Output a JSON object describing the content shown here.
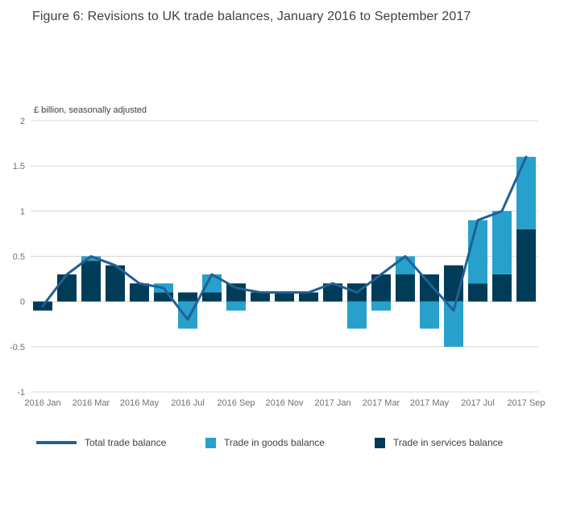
{
  "chart_data": {
    "type": "bar",
    "subtype": "stacked-bar-with-line",
    "title": "Figure 6: Revisions to UK trade balances, January 2016 to September 2017",
    "unit_label": "£ billion, seasonally adjusted",
    "categories": [
      "2016 Jan",
      "2016 Feb",
      "2016 Mar",
      "2016 Apr",
      "2016 May",
      "2016 Jun",
      "2016 Jul",
      "2016 Aug",
      "2016 Sep",
      "2016 Oct",
      "2016 Nov",
      "2016 Dec",
      "2017 Jan",
      "2017 Feb",
      "2017 Mar",
      "2017 Apr",
      "2017 May",
      "2017 Jun",
      "2017 Jul",
      "2017 Aug",
      "2017 Sep"
    ],
    "x_tick_every": 2,
    "ylim": [
      -1,
      2
    ],
    "yticks": [
      2,
      1.5,
      1,
      0.5,
      0,
      -0.5,
      -1
    ],
    "grid": true,
    "legend_position": "bottom",
    "colors": {
      "grid": "#d8d8d8",
      "tick_text": "#707070"
    },
    "series": [
      {
        "name": "Total trade balance",
        "type": "line",
        "color": "#206095",
        "values": [
          -0.05,
          0.3,
          0.5,
          0.4,
          0.2,
          0.15,
          -0.2,
          0.3,
          0.15,
          0.1,
          0.1,
          0.1,
          0.2,
          0.1,
          0.3,
          0.5,
          0.2,
          -0.1,
          0.9,
          1.0,
          1.6
        ]
      },
      {
        "name": "Trade in goods balance",
        "type": "bar",
        "color": "#27a0cc",
        "values": [
          0,
          0,
          0.05,
          0,
          0,
          0.1,
          -0.3,
          0.2,
          -0.1,
          0,
          0,
          0,
          0,
          -0.3,
          -0.1,
          0.2,
          -0.3,
          -0.5,
          0.7,
          0.7,
          0.8
        ]
      },
      {
        "name": "Trade in services balance",
        "type": "bar",
        "color": "#003c57",
        "values": [
          -0.1,
          0.3,
          0.45,
          0.4,
          0.2,
          0.1,
          0.1,
          0.1,
          0.2,
          0.1,
          0.1,
          0.1,
          0.2,
          0.2,
          0.3,
          0.3,
          0.3,
          0.4,
          0.2,
          0.3,
          0.8
        ]
      }
    ],
    "stack_order": [
      "Trade in services balance",
      "Trade in goods balance"
    ]
  }
}
